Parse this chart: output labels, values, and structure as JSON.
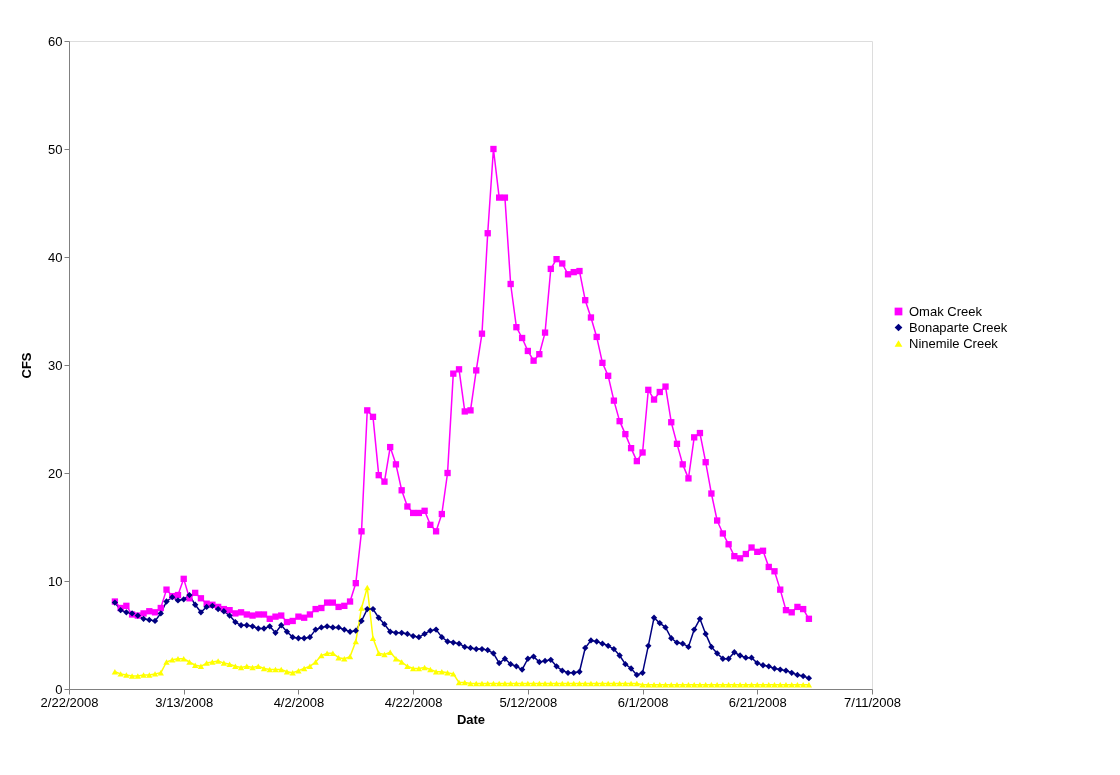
{
  "chart_data": {
    "type": "line",
    "xlabel": "Date",
    "ylabel": "CFS",
    "xlim": [
      "2008-02-22",
      "2008-07-11"
    ],
    "xticks": [
      {
        "value": "2008-02-22",
        "label": "2/22/2008"
      },
      {
        "value": "2008-03-13",
        "label": "3/13/2008"
      },
      {
        "value": "2008-04-02",
        "label": "4/2/2008"
      },
      {
        "value": "2008-04-22",
        "label": "4/22/2008"
      },
      {
        "value": "2008-05-12",
        "label": "5/12/2008"
      },
      {
        "value": "2008-06-01",
        "label": "6/1/2008"
      },
      {
        "value": "2008-06-21",
        "label": "6/21/2008"
      },
      {
        "value": "2008-07-11",
        "label": "7/11/2008"
      }
    ],
    "ylim": [
      0,
      60
    ],
    "yticks": [
      0,
      10,
      20,
      30,
      40,
      50,
      60
    ],
    "grid": false,
    "legend": "right",
    "line_style": "solid",
    "x": [
      "2008-03-01",
      "2008-03-02",
      "2008-03-03",
      "2008-03-04",
      "2008-03-05",
      "2008-03-06",
      "2008-03-07",
      "2008-03-08",
      "2008-03-09",
      "2008-03-10",
      "2008-03-11",
      "2008-03-12",
      "2008-03-13",
      "2008-03-14",
      "2008-03-15",
      "2008-03-16",
      "2008-03-17",
      "2008-03-18",
      "2008-03-19",
      "2008-03-20",
      "2008-03-21",
      "2008-03-22",
      "2008-03-23",
      "2008-03-24",
      "2008-03-25",
      "2008-03-26",
      "2008-03-27",
      "2008-03-28",
      "2008-03-29",
      "2008-03-30",
      "2008-03-31",
      "2008-04-01",
      "2008-04-02",
      "2008-04-03",
      "2008-04-04",
      "2008-04-05",
      "2008-04-06",
      "2008-04-07",
      "2008-04-08",
      "2008-04-09",
      "2008-04-10",
      "2008-04-11",
      "2008-04-12",
      "2008-04-13",
      "2008-04-14",
      "2008-04-15",
      "2008-04-16",
      "2008-04-17",
      "2008-04-18",
      "2008-04-19",
      "2008-04-20",
      "2008-04-21",
      "2008-04-22",
      "2008-04-23",
      "2008-04-24",
      "2008-04-25",
      "2008-04-26",
      "2008-04-27",
      "2008-04-28",
      "2008-04-29",
      "2008-04-30",
      "2008-05-01",
      "2008-05-02",
      "2008-05-03",
      "2008-05-04",
      "2008-05-05",
      "2008-05-06",
      "2008-05-07",
      "2008-05-08",
      "2008-05-09",
      "2008-05-10",
      "2008-05-11",
      "2008-05-12",
      "2008-05-13",
      "2008-05-14",
      "2008-05-15",
      "2008-05-16",
      "2008-05-17",
      "2008-05-18",
      "2008-05-19",
      "2008-05-20",
      "2008-05-21",
      "2008-05-22",
      "2008-05-23",
      "2008-05-24",
      "2008-05-25",
      "2008-05-26",
      "2008-05-27",
      "2008-05-28",
      "2008-05-29",
      "2008-05-30",
      "2008-05-31",
      "2008-06-01",
      "2008-06-02",
      "2008-06-03",
      "2008-06-04",
      "2008-06-05",
      "2008-06-06",
      "2008-06-07",
      "2008-06-08",
      "2008-06-09",
      "2008-06-10",
      "2008-06-11",
      "2008-06-12",
      "2008-06-13",
      "2008-06-14",
      "2008-06-15",
      "2008-06-16",
      "2008-06-17",
      "2008-06-18",
      "2008-06-19",
      "2008-06-20",
      "2008-06-21",
      "2008-06-22",
      "2008-06-23",
      "2008-06-24",
      "2008-06-25",
      "2008-06-26",
      "2008-06-27",
      "2008-06-28",
      "2008-06-29",
      "2008-06-30"
    ],
    "series": [
      {
        "name": "Omak Creek",
        "color": "#ff00ff",
        "marker": "square",
        "values": [
          8.1,
          7.5,
          7.7,
          6.9,
          6.8,
          7.0,
          7.2,
          7.1,
          7.5,
          9.2,
          8.6,
          8.7,
          10.2,
          8.4,
          8.9,
          8.4,
          7.9,
          7.8,
          7.6,
          7.4,
          7.3,
          7.0,
          7.1,
          6.9,
          6.8,
          6.9,
          6.9,
          6.5,
          6.7,
          6.8,
          6.2,
          6.3,
          6.7,
          6.6,
          6.9,
          7.4,
          7.5,
          8.0,
          8.0,
          7.6,
          7.7,
          8.1,
          9.8,
          14.6,
          25.8,
          25.2,
          19.8,
          19.2,
          22.4,
          20.8,
          18.4,
          16.9,
          16.3,
          16.3,
          16.5,
          15.2,
          14.6,
          16.2,
          20.0,
          29.2,
          29.6,
          25.7,
          25.8,
          29.5,
          32.9,
          42.2,
          50.0,
          45.5,
          45.5,
          37.5,
          33.5,
          32.5,
          31.3,
          30.4,
          31.0,
          33.0,
          38.9,
          39.8,
          39.4,
          38.4,
          38.6,
          38.7,
          36.0,
          34.4,
          32.6,
          30.2,
          29.0,
          26.7,
          24.8,
          23.6,
          22.3,
          21.1,
          21.9,
          27.7,
          26.8,
          27.5,
          28.0,
          24.7,
          22.7,
          20.8,
          19.5,
          23.3,
          23.7,
          21.0,
          18.1,
          15.6,
          14.4,
          13.4,
          12.3,
          12.1,
          12.5,
          13.1,
          12.7,
          12.8,
          11.3,
          10.9,
          9.2,
          7.3,
          7.1,
          7.6,
          7.4,
          6.5
        ]
      },
      {
        "name": "Bonaparte Creek",
        "color": "#000080",
        "marker": "diamond",
        "values": [
          8.0,
          7.3,
          7.1,
          7.0,
          6.8,
          6.5,
          6.4,
          6.3,
          7.0,
          8.1,
          8.5,
          8.2,
          8.3,
          8.7,
          7.8,
          7.1,
          7.6,
          7.7,
          7.4,
          7.2,
          6.8,
          6.2,
          5.9,
          5.9,
          5.8,
          5.6,
          5.6,
          5.8,
          5.2,
          5.9,
          5.3,
          4.8,
          4.7,
          4.7,
          4.8,
          5.5,
          5.7,
          5.8,
          5.7,
          5.7,
          5.5,
          5.3,
          5.4,
          6.3,
          7.4,
          7.4,
          6.6,
          6.0,
          5.3,
          5.2,
          5.2,
          5.1,
          4.9,
          4.8,
          5.1,
          5.4,
          5.5,
          4.8,
          4.4,
          4.3,
          4.2,
          3.9,
          3.8,
          3.7,
          3.7,
          3.6,
          3.3,
          2.4,
          2.8,
          2.3,
          2.1,
          1.8,
          2.8,
          3.0,
          2.5,
          2.6,
          2.7,
          2.1,
          1.7,
          1.5,
          1.5,
          1.6,
          3.8,
          4.5,
          4.4,
          4.2,
          4.0,
          3.7,
          3.1,
          2.3,
          1.9,
          1.3,
          1.5,
          4.0,
          6.6,
          6.1,
          5.7,
          4.7,
          4.3,
          4.2,
          3.9,
          5.5,
          6.5,
          5.1,
          3.9,
          3.3,
          2.8,
          2.8,
          3.4,
          3.1,
          2.9,
          2.9,
          2.4,
          2.2,
          2.1,
          1.9,
          1.8,
          1.7,
          1.5,
          1.3,
          1.2,
          1.0
        ]
      },
      {
        "name": "Ninemile Creek",
        "color": "#ffff00",
        "marker": "triangle",
        "values": [
          1.6,
          1.4,
          1.3,
          1.2,
          1.2,
          1.3,
          1.3,
          1.4,
          1.5,
          2.5,
          2.7,
          2.8,
          2.8,
          2.5,
          2.2,
          2.1,
          2.4,
          2.5,
          2.6,
          2.4,
          2.3,
          2.1,
          2.0,
          2.1,
          2.0,
          2.1,
          1.9,
          1.8,
          1.8,
          1.8,
          1.6,
          1.5,
          1.7,
          1.9,
          2.1,
          2.5,
          3.1,
          3.3,
          3.3,
          2.9,
          2.8,
          3.0,
          4.4,
          7.5,
          9.4,
          4.7,
          3.3,
          3.2,
          3.4,
          2.8,
          2.5,
          2.1,
          1.9,
          1.9,
          2.0,
          1.8,
          1.6,
          1.6,
          1.5,
          1.4,
          0.6,
          0.6,
          0.5,
          0.5,
          0.5,
          0.5,
          0.5,
          0.5,
          0.5,
          0.5,
          0.5,
          0.5,
          0.5,
          0.5,
          0.5,
          0.5,
          0.5,
          0.5,
          0.5,
          0.5,
          0.5,
          0.5,
          0.5,
          0.5,
          0.5,
          0.5,
          0.5,
          0.5,
          0.5,
          0.5,
          0.5,
          0.5,
          0.4,
          0.4,
          0.4,
          0.4,
          0.4,
          0.4,
          0.4,
          0.4,
          0.4,
          0.4,
          0.4,
          0.4,
          0.4,
          0.4,
          0.4,
          0.4,
          0.4,
          0.4,
          0.4,
          0.4,
          0.4,
          0.4,
          0.4,
          0.4,
          0.4,
          0.4,
          0.4,
          0.4,
          0.4,
          0.4
        ]
      }
    ]
  }
}
